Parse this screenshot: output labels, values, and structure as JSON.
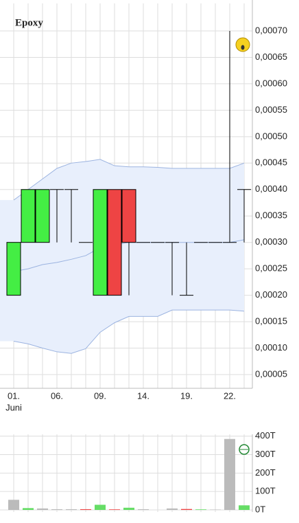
{
  "chart_data": [
    {
      "type": "candlestick",
      "title": "Epoxy",
      "categories": [
        "01.",
        null,
        null,
        "06.",
        null,
        null,
        "09.",
        null,
        null,
        "14.",
        null,
        null,
        "19.",
        null,
        null,
        "22.",
        null
      ],
      "month_label": "Juni",
      "open": [
        0.0002,
        0.0003,
        0.0003,
        0.0004,
        0.0004,
        0.0003,
        0.0002,
        0.0004,
        0.0004,
        0.0003,
        0.0003,
        0.0003,
        0.0002,
        0.0003,
        0.0003,
        0.0003,
        0.0004
      ],
      "high": [
        0.0003,
        0.0004,
        0.0004,
        0.0004,
        0.0004,
        0.0003,
        0.0004,
        0.0004,
        0.0004,
        0.0003,
        0.0003,
        0.0003,
        0.0003,
        0.0003,
        0.0003,
        0.0007,
        0.0004
      ],
      "low": [
        0.0002,
        0.0003,
        0.0003,
        0.0003,
        0.0003,
        0.0003,
        0.0002,
        0.0002,
        0.0002,
        0.0003,
        0.0003,
        0.0002,
        0.0002,
        0.0003,
        0.0003,
        0.0003,
        0.0003
      ],
      "close": [
        0.0003,
        0.0004,
        0.0004,
        0.0004,
        0.0004,
        0.0003,
        0.0004,
        0.0002,
        0.0003,
        0.0003,
        0.0003,
        0.0003,
        0.0002,
        0.0003,
        0.0003,
        0.0003,
        0.0004
      ],
      "up_color": "#44ee44",
      "down_color": "#ee4444",
      "band_upper": [
        0.00038,
        0.0004,
        0.00042,
        0.00044,
        0.00045,
        0.000453,
        0.000457,
        0.000445,
        0.000443,
        0.000443,
        0.000442,
        0.00044,
        0.00044,
        0.00044,
        0.00044,
        0.00044,
        0.00045
      ],
      "band_middle": [
        0.000245,
        0.00025,
        0.000258,
        0.000262,
        0.000268,
        0.000275,
        0.00029,
        0.000295,
        0.0003,
        0.0003,
        0.0003,
        0.0003,
        0.0003,
        0.0003,
        0.0003,
        0.0003,
        0.000305
      ],
      "band_lower": [
        0.000113,
        0.000108,
        0.0001,
        9.3e-05,
        9e-05,
        9.9e-05,
        0.00013,
        0.000148,
        0.00016,
        0.00016,
        0.00016,
        0.000172,
        0.000172,
        0.000172,
        0.000172,
        0.000172,
        0.00017
      ],
      "band_color": "#9bb3e0",
      "band_fill": "#e8effc",
      "ylim": [
        2.4e-05,
        0.000752
      ],
      "yticks": [
        {
          "value": 5e-05,
          "label": "0,00005"
        },
        {
          "value": 0.0001,
          "label": "0,00010"
        },
        {
          "value": 0.00015,
          "label": "0,00015"
        },
        {
          "value": 0.0002,
          "label": "0,00020"
        },
        {
          "value": 0.00025,
          "label": "0,00025"
        },
        {
          "value": 0.0003,
          "label": "0,00030"
        },
        {
          "value": 0.00035,
          "label": "0,00035"
        },
        {
          "value": 0.0004,
          "label": "0,00040"
        },
        {
          "value": 0.00045,
          "label": "0,00045"
        },
        {
          "value": 0.0005,
          "label": "0,00050"
        },
        {
          "value": 0.00055,
          "label": "0,00055"
        },
        {
          "value": 0.0006,
          "label": "0,00060"
        },
        {
          "value": 0.00065,
          "label": "0,00065"
        },
        {
          "value": 0.0007,
          "label": "0,00070"
        }
      ],
      "grid": true
    },
    {
      "type": "bar",
      "values": [
        55,
        10,
        8,
        4,
        4,
        4,
        28,
        3,
        12,
        4,
        0,
        8,
        5,
        3,
        2,
        385,
        25
      ],
      "colors": [
        "#bbbbbb",
        "#66dd66",
        "#bbbbbb",
        "#bbbbbb",
        "#bbbbbb",
        "#ee4444",
        "#66dd66",
        "#ee4444",
        "#66dd66",
        "#bbbbbb",
        "#bbbbbb",
        "#bbbbbb",
        "#ee4444",
        "#66dd66",
        "#bbbbbb",
        "#bbbbbb",
        "#66dd66"
      ],
      "ylim": [
        0,
        410
      ],
      "yticks": [
        {
          "value": 0,
          "label": "0T"
        },
        {
          "value": 100,
          "label": "100T"
        },
        {
          "value": 200,
          "label": "200T"
        },
        {
          "value": 300,
          "label": "300T"
        },
        {
          "value": 400,
          "label": "400T"
        }
      ],
      "grid": true
    }
  ]
}
